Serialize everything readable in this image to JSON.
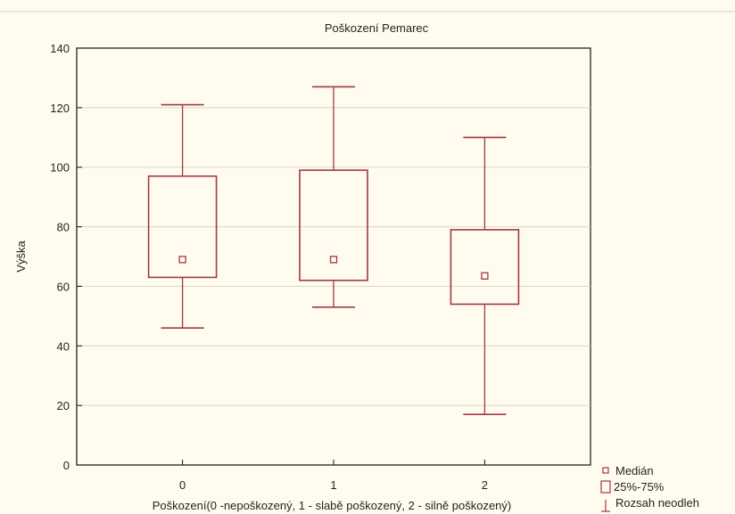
{
  "chart_data": {
    "type": "boxplot",
    "title": "Poškození Pemarec",
    "xlabel": "Poškození(0 -nepoškozený, 1 - slabě poškozený, 2 - silně poškozený)",
    "ylabel": "Výška",
    "ylim": [
      0,
      140
    ],
    "yticks": [
      "0",
      "20",
      "40",
      "60",
      "80",
      "100",
      "120",
      "140"
    ],
    "categories": [
      "0",
      "1",
      "2"
    ],
    "boxes": [
      {
        "category": "0",
        "min": 46,
        "q1": 63,
        "median": 69,
        "q3": 97,
        "max": 121
      },
      {
        "category": "1",
        "min": 53,
        "q1": 62,
        "median": 69,
        "q3": 99,
        "max": 127
      },
      {
        "category": "2",
        "min": 17,
        "q1": 54,
        "median": 63.5,
        "q3": 79,
        "max": 110
      }
    ],
    "legend": {
      "position": "bottom-right",
      "entries": [
        "Medián",
        "25%-75%",
        "Rozsah neodleh"
      ]
    },
    "grid": true,
    "colors": {
      "box": "#a03a40",
      "background": "#fffcef",
      "grid": "#d8d6cc"
    }
  }
}
